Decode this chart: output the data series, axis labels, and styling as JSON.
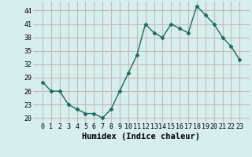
{
  "x": [
    0,
    1,
    2,
    3,
    4,
    5,
    6,
    7,
    8,
    9,
    10,
    11,
    12,
    13,
    14,
    15,
    16,
    17,
    18,
    19,
    20,
    21,
    22,
    23
  ],
  "y": [
    28,
    26,
    26,
    23,
    22,
    21,
    21,
    20,
    22,
    26,
    30,
    34,
    41,
    39,
    38,
    41,
    40,
    39,
    45,
    43,
    41,
    38,
    36,
    33
  ],
  "xlabel": "Humidex (Indice chaleur)",
  "ylim": [
    19,
    46
  ],
  "yticks": [
    20,
    23,
    26,
    29,
    32,
    35,
    38,
    41,
    44
  ],
  "xticks": [
    0,
    1,
    2,
    3,
    4,
    5,
    6,
    7,
    8,
    9,
    10,
    11,
    12,
    13,
    14,
    15,
    16,
    17,
    18,
    19,
    20,
    21,
    22,
    23
  ],
  "line_color": "#1a6b5a",
  "marker": "D",
  "marker_size": 2.5,
  "bg_color": "#d6eeee",
  "grid_color": "#c8b8b8",
  "line_width": 1.0,
  "tick_fontsize": 6.0,
  "xlabel_fontsize": 7.5
}
